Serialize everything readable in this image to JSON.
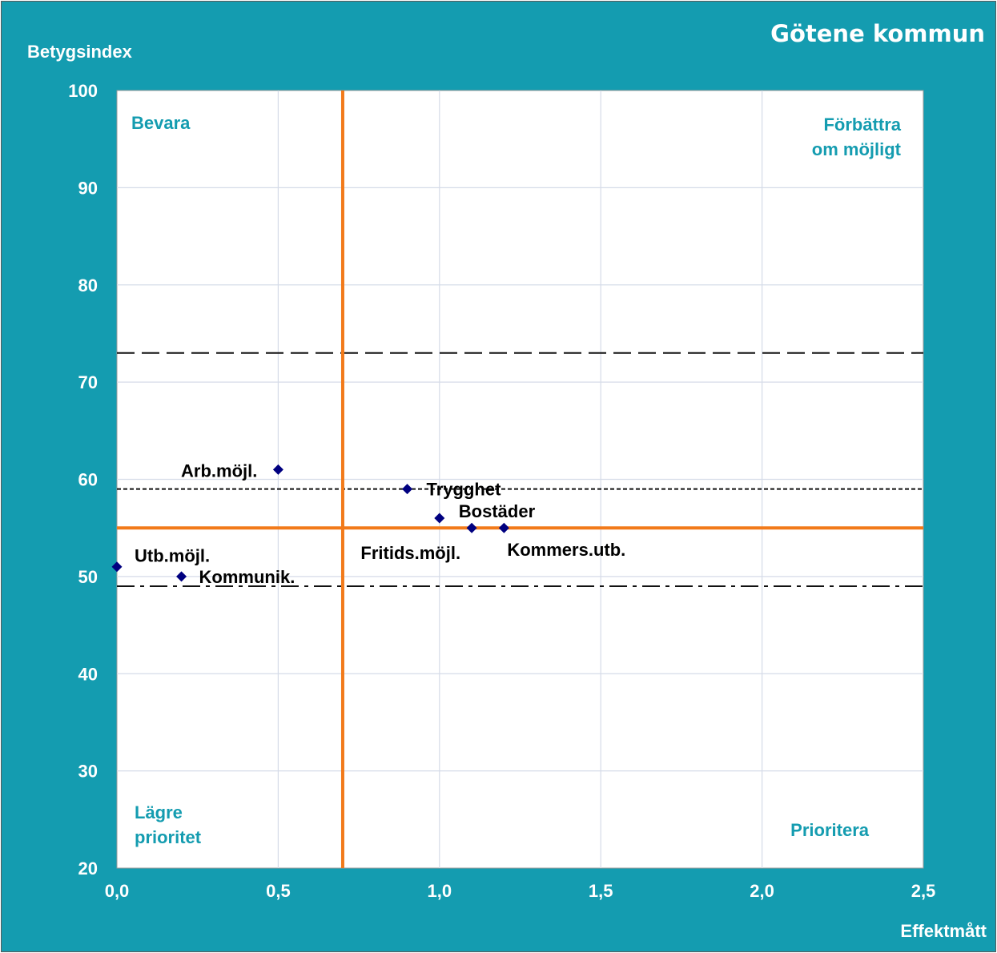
{
  "chart_data": {
    "type": "scatter",
    "title": "Götene kommun",
    "xlabel": "Effektmått",
    "ylabel": "Betygsindex",
    "xlim": [
      0,
      2.5
    ],
    "ylim": [
      20,
      100
    ],
    "x_ticks": [
      "0,0",
      "0,5",
      "1,0",
      "1,5",
      "2,0",
      "2,5"
    ],
    "y_ticks": [
      "20",
      "30",
      "40",
      "50",
      "60",
      "70",
      "80",
      "90",
      "100"
    ],
    "grid": true,
    "points": [
      {
        "label": "Arb.möjl.",
        "x": 0.5,
        "y": 61
      },
      {
        "label": "Trygghet",
        "x": 0.9,
        "y": 59
      },
      {
        "label": "Bostäder",
        "x": 1.0,
        "y": 56
      },
      {
        "label": "Fritids.möjl.",
        "x": 1.1,
        "y": 55
      },
      {
        "label": "Kommers.utb.",
        "x": 1.2,
        "y": 55
      },
      {
        "label": "Utb.möjl.",
        "x": 0.0,
        "y": 51
      },
      {
        "label": "Kommunik.",
        "x": 0.2,
        "y": 50
      }
    ],
    "quadrant_lines": {
      "x": 0.7,
      "y": 55
    },
    "reference_lines": [
      {
        "y": 73,
        "style": "long-dash"
      },
      {
        "y": 59,
        "style": "short-dash"
      },
      {
        "y": 49,
        "style": "dash-dot"
      }
    ],
    "quadrant_labels": {
      "top_left": "Bevara",
      "top_right": [
        "Förbättra",
        "om möjligt"
      ],
      "bottom_left": [
        "Lägre",
        "prioritet"
      ],
      "bottom_right": "Prioritera"
    },
    "colors": {
      "background": "#149CB0",
      "plot_area": "#ffffff",
      "quadrant_line": "#F27A1A",
      "marker": "#000080",
      "quadrant_text": "#149CB0",
      "axis_text": "#ffffff"
    }
  }
}
